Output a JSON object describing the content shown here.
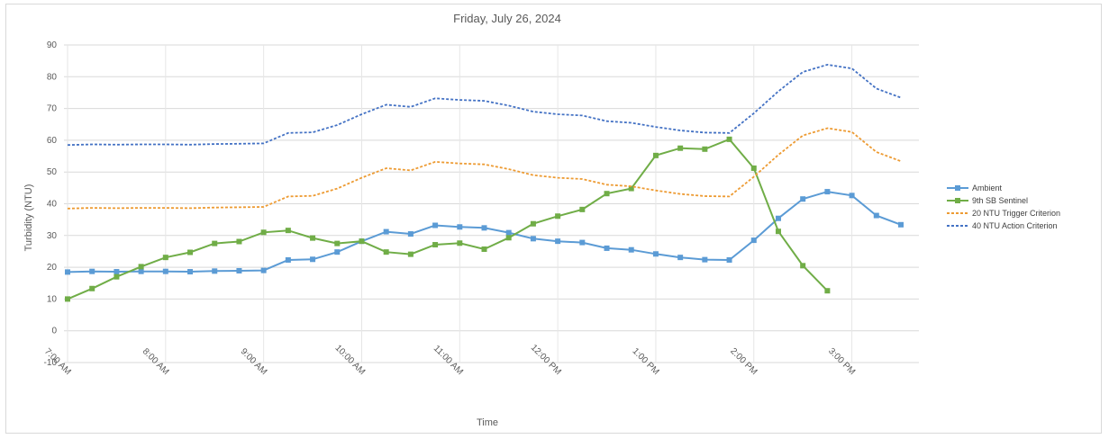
{
  "chart_data": {
    "type": "line",
    "title": "Friday, July 26, 2024",
    "xlabel": "Time",
    "ylabel": "Turbidity (NTU)",
    "ylim": [
      -10,
      90
    ],
    "ytick_step": 10,
    "grid": true,
    "legend": "right",
    "x": [
      "7:00 AM",
      "7:15 AM",
      "7:30 AM",
      "7:45 AM",
      "8:00 AM",
      "8:15 AM",
      "8:30 AM",
      "8:45 AM",
      "9:00 AM",
      "9:15 AM",
      "9:30 AM",
      "9:45 AM",
      "10:00 AM",
      "10:15 AM",
      "10:30 AM",
      "10:45 AM",
      "11:00 AM",
      "11:15 AM",
      "11:30 AM",
      "11:45 AM",
      "12:00 PM",
      "12:15 PM",
      "12:30 PM",
      "12:45 PM",
      "1:00 PM",
      "1:15 PM",
      "1:30 PM",
      "1:45 PM",
      "2:00 PM",
      "2:15 PM",
      "2:30 PM",
      "2:45 PM",
      "3:00 PM",
      "3:15 PM",
      "3:30 PM"
    ],
    "x_tick_labels": [
      "7:00 AM",
      "8:00 AM",
      "9:00 AM",
      "10:00 AM",
      "11:00 AM",
      "12:00 PM",
      "1:00 PM",
      "2:00 PM",
      "3:00 PM"
    ],
    "series": [
      {
        "name": "Ambient",
        "color": "#5b9bd5",
        "style": "solid-markers",
        "values": [
          18.5,
          18.7,
          18.6,
          18.7,
          18.7,
          18.6,
          18.8,
          18.9,
          19.0,
          22.3,
          22.5,
          24.8,
          28.2,
          31.2,
          30.5,
          33.2,
          32.7,
          32.4,
          30.9,
          29.0,
          28.2,
          27.8,
          26.0,
          25.5,
          24.2,
          23.1,
          22.4,
          22.3,
          28.5,
          35.4,
          41.5,
          43.8,
          42.6,
          36.3,
          33.4
        ]
      },
      {
        "name": "9th SB Sentinel",
        "color": "#70ad47",
        "style": "solid-markers",
        "values": [
          10.0,
          13.3,
          17.0,
          20.2,
          23.1,
          24.7,
          27.5,
          28.1,
          31.0,
          31.6,
          29.2,
          27.5,
          28.2,
          24.8,
          24.1,
          27.1,
          27.6,
          25.7,
          29.3,
          33.7,
          36.1,
          38.2,
          43.2,
          44.8,
          55.2,
          57.5,
          57.2,
          60.3,
          51.2,
          31.3,
          20.5,
          12.6,
          null,
          null,
          null
        ]
      },
      {
        "name": "20 NTU Trigger Criterion",
        "color": "#ed9b33",
        "style": "dashed",
        "values": [
          38.5,
          38.7,
          38.6,
          38.7,
          38.7,
          38.6,
          38.8,
          38.9,
          39.0,
          42.3,
          42.5,
          44.8,
          48.2,
          51.2,
          50.5,
          53.2,
          52.7,
          52.4,
          50.9,
          49.0,
          48.2,
          47.8,
          46.0,
          45.5,
          44.2,
          43.1,
          42.4,
          42.3,
          48.5,
          55.4,
          61.5,
          63.8,
          62.6,
          56.3,
          53.4
        ]
      },
      {
        "name": "40 NTU Action Criterion",
        "color": "#4472c4",
        "style": "dashed",
        "values": [
          58.5,
          58.7,
          58.6,
          58.7,
          58.7,
          58.6,
          58.8,
          58.9,
          59.0,
          62.3,
          62.5,
          64.8,
          68.2,
          71.2,
          70.5,
          73.2,
          72.7,
          72.4,
          70.9,
          69.0,
          68.2,
          67.8,
          66.0,
          65.5,
          64.2,
          63.1,
          62.4,
          62.3,
          68.5,
          75.4,
          81.5,
          83.8,
          82.6,
          76.3,
          73.4
        ]
      }
    ]
  }
}
